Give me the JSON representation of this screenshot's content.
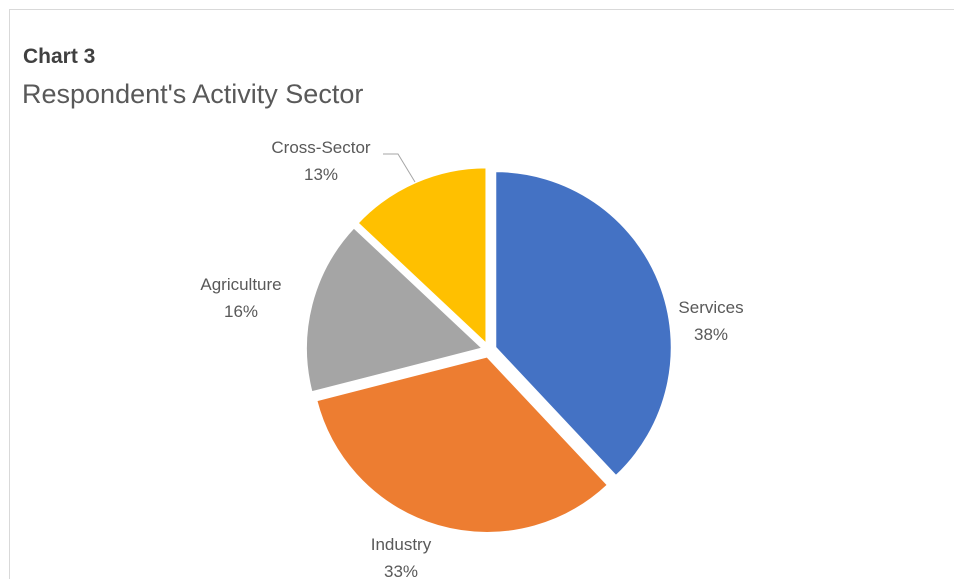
{
  "chart_data": {
    "type": "pie",
    "title": "Chart 3",
    "subtitle": "Respondent's Activity Sector",
    "categories": [
      "Services",
      "Industry",
      "Agriculture",
      "Cross-Sector"
    ],
    "values": [
      38,
      33,
      16,
      13
    ],
    "value_labels": [
      "38%",
      "33%",
      "16%",
      "13%"
    ],
    "colors": [
      "#4472C4",
      "#ED7D31",
      "#A5A5A5",
      "#FFC000"
    ],
    "legend": "none",
    "exploded": true
  }
}
